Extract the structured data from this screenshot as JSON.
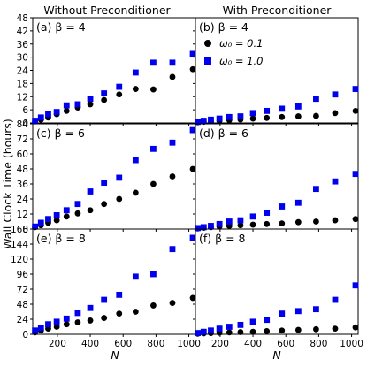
{
  "figure": {
    "column_titles": [
      "Without Preconditioner",
      "With Preconditioner"
    ],
    "ylabel": "Wall Clock Time (hours)",
    "xlabel": "N",
    "legend": {
      "entries": [
        {
          "label": "ω₀ = 0.1",
          "marker": "circle",
          "color": "#000000"
        },
        {
          "label": "ω₀ = 1.0",
          "marker": "square",
          "color": "#0000ee"
        }
      ],
      "placement": "upper-left of panel (b)"
    },
    "colors": {
      "omega_0_1": "#000000",
      "omega_1_0": "#0000ee"
    }
  },
  "chart_data": [
    {
      "panel": "(a)",
      "title": "(a)  β = 4",
      "type": "scatter",
      "xlim": [
        50,
        1040
      ],
      "ylim": [
        0,
        48
      ],
      "yticks": [
        0,
        6,
        12,
        18,
        24,
        30,
        36,
        42,
        48
      ],
      "xticks": [
        200,
        400,
        600,
        800,
        1000
      ],
      "series": [
        {
          "name": "ω₀ = 0.1",
          "color": "#000000",
          "marker": "circle",
          "x": [
            64,
            100,
            144,
            196,
            256,
            324,
            400,
            484,
            576,
            676,
            784,
            900,
            1024
          ],
          "y": [
            0.7,
            1.5,
            2.5,
            4.0,
            5.5,
            7.0,
            8.5,
            10.5,
            13.0,
            15.5,
            15.3,
            21.0,
            24.5
          ]
        },
        {
          "name": "ω₀ = 1.0",
          "color": "#0000ee",
          "marker": "square",
          "x": [
            64,
            100,
            144,
            196,
            256,
            324,
            400,
            484,
            576,
            676,
            784,
            900,
            1024
          ],
          "y": [
            1.0,
            2.5,
            4.0,
            5.0,
            8.0,
            8.5,
            11.0,
            13.5,
            16.5,
            23.0,
            27.5,
            27.5,
            31.5
          ]
        }
      ]
    },
    {
      "panel": "(b)",
      "title": "(b)  β = 4",
      "type": "scatter",
      "xlim": [
        50,
        1040
      ],
      "ylim": [
        0,
        48
      ],
      "xticks": [
        200,
        400,
        600,
        800,
        1000
      ],
      "series": [
        {
          "name": "ω₀ = 0.1",
          "color": "#000000",
          "marker": "circle",
          "x": [
            64,
            100,
            144,
            196,
            256,
            324,
            400,
            484,
            576,
            676,
            784,
            900,
            1024
          ],
          "y": [
            0.3,
            0.5,
            0.8,
            1.0,
            1.3,
            1.6,
            2.0,
            2.3,
            2.7,
            3.0,
            3.2,
            4.5,
            5.5
          ]
        },
        {
          "name": "ω₀ = 1.0",
          "color": "#0000ee",
          "marker": "square",
          "x": [
            64,
            100,
            144,
            196,
            256,
            324,
            400,
            484,
            576,
            676,
            784,
            900,
            1024
          ],
          "y": [
            0.5,
            1.0,
            1.5,
            2.0,
            2.7,
            3.0,
            4.5,
            5.5,
            6.5,
            7.5,
            11.0,
            13.0,
            15.5
          ]
        }
      ]
    },
    {
      "panel": "(c)",
      "title": "(c)  β = 6",
      "type": "scatter",
      "xlim": [
        50,
        1040
      ],
      "ylim": [
        0,
        84
      ],
      "yticks": [
        0,
        12,
        24,
        36,
        48,
        60,
        72,
        84
      ],
      "xticks": [
        200,
        400,
        600,
        800,
        1000
      ],
      "series": [
        {
          "name": "ω₀ = 0.1",
          "color": "#000000",
          "marker": "circle",
          "x": [
            64,
            100,
            144,
            196,
            256,
            324,
            400,
            484,
            576,
            676,
            784,
            900,
            1024
          ],
          "y": [
            1.5,
            3.0,
            5.0,
            7.0,
            10.0,
            12.5,
            15.0,
            20.0,
            24.0,
            29.0,
            36.0,
            42.0,
            48.0
          ]
        },
        {
          "name": "ω₀ = 1.0",
          "color": "#0000ee",
          "marker": "square",
          "x": [
            64,
            100,
            144,
            196,
            256,
            324,
            400,
            484,
            576,
            676,
            784,
            900,
            1024
          ],
          "y": [
            2.0,
            5.0,
            8.0,
            11.0,
            15.0,
            20.0,
            30.0,
            37.0,
            41.0,
            55.0,
            64.0,
            69.0,
            79.0
          ]
        }
      ]
    },
    {
      "panel": "(d)",
      "title": "(d)  β = 6",
      "type": "scatter",
      "xlim": [
        50,
        1040
      ],
      "ylim": [
        0,
        84
      ],
      "xticks": [
        200,
        400,
        600,
        800,
        1000
      ],
      "series": [
        {
          "name": "ω₀ = 0.1",
          "color": "#000000",
          "marker": "circle",
          "x": [
            64,
            100,
            144,
            196,
            256,
            324,
            400,
            484,
            576,
            676,
            784,
            900,
            1024
          ],
          "y": [
            0.5,
            1.0,
            1.5,
            2.0,
            2.5,
            3.0,
            3.5,
            4.0,
            4.5,
            5.5,
            6.0,
            7.0,
            8.0
          ]
        },
        {
          "name": "ω₀ = 1.0",
          "color": "#0000ee",
          "marker": "square",
          "x": [
            64,
            100,
            144,
            196,
            256,
            324,
            400,
            484,
            576,
            676,
            784,
            900,
            1024
          ],
          "y": [
            0.8,
            1.5,
            2.5,
            4.0,
            6.0,
            7.0,
            10.0,
            13.0,
            18.0,
            21.0,
            32.0,
            38.0,
            44.0
          ]
        }
      ]
    },
    {
      "panel": "(e)",
      "title": "(e)  β = 8",
      "type": "scatter",
      "xlim": [
        50,
        1040
      ],
      "ylim": [
        0,
        168
      ],
      "yticks": [
        0,
        24,
        48,
        72,
        96,
        120,
        144,
        168
      ],
      "xticks": [
        200,
        400,
        600,
        800,
        1000
      ],
      "series": [
        {
          "name": "ω₀ = 0.1",
          "color": "#000000",
          "marker": "circle",
          "x": [
            64,
            100,
            144,
            196,
            256,
            324,
            400,
            484,
            576,
            676,
            784,
            900,
            1024
          ],
          "y": [
            3,
            6,
            9,
            12,
            16,
            19,
            22,
            26,
            33,
            36,
            46,
            50,
            58
          ]
        },
        {
          "name": "ω₀ = 1.0",
          "color": "#0000ee",
          "marker": "square",
          "x": [
            64,
            100,
            144,
            196,
            256,
            324,
            400,
            484,
            576,
            676,
            784,
            900,
            1024
          ],
          "y": [
            6,
            10,
            16,
            20,
            25,
            34,
            42,
            55,
            63,
            92,
            96,
            136,
            154
          ]
        }
      ]
    },
    {
      "panel": "(f)",
      "title": "(f)  β = 8",
      "type": "scatter",
      "xlim": [
        50,
        1040
      ],
      "ylim": [
        0,
        168
      ],
      "xticks": [
        200,
        400,
        600,
        800,
        1000
      ],
      "series": [
        {
          "name": "ω₀ = 0.1",
          "color": "#000000",
          "marker": "circle",
          "x": [
            64,
            100,
            144,
            196,
            256,
            324,
            400,
            484,
            576,
            676,
            784,
            900,
            1024
          ],
          "y": [
            1,
            1.5,
            2,
            2.5,
            3,
            3.5,
            4,
            5,
            6,
            7,
            8,
            9,
            11
          ]
        },
        {
          "name": "ω₀ = 1.0",
          "color": "#0000ee",
          "marker": "square",
          "x": [
            64,
            100,
            144,
            196,
            256,
            324,
            400,
            484,
            576,
            676,
            784,
            900,
            1024
          ],
          "y": [
            2,
            4,
            6,
            9,
            12,
            15,
            20,
            23,
            33,
            37,
            40,
            55,
            78
          ]
        }
      ]
    }
  ]
}
